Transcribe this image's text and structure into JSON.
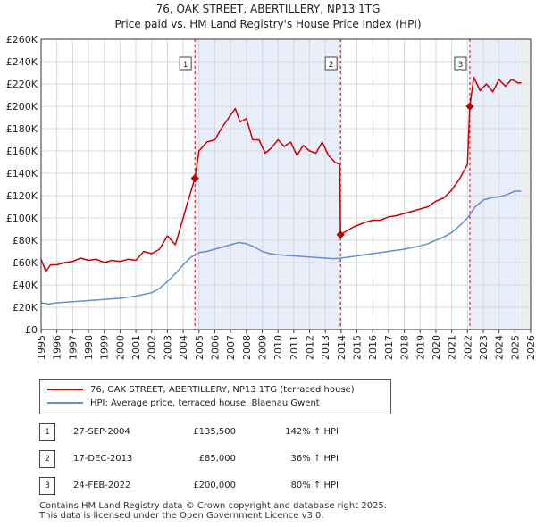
{
  "header": {
    "title_line1": "76, OAK STREET, ABERTILLERY, NP13 1TG",
    "title_line2": "Price paid vs. HM Land Registry's House Price Index (HPI)"
  },
  "chart_data": {
    "type": "line",
    "title": "76, OAK STREET, ABERTILLERY, NP13 1TG — Price paid vs. HM Land Registry's House Price Index (HPI)",
    "xlim": [
      1995,
      2026
    ],
    "ylim": [
      0,
      260000
    ],
    "x_ticks": [
      "1995",
      "1996",
      "1997",
      "1998",
      "1999",
      "2000",
      "2001",
      "2002",
      "2003",
      "2004",
      "2005",
      "2006",
      "2007",
      "2008",
      "2009",
      "2010",
      "2011",
      "2012",
      "2013",
      "2014",
      "2015",
      "2016",
      "2017",
      "2018",
      "2019",
      "2020",
      "2021",
      "2022",
      "2023",
      "2024",
      "2025",
      "2026"
    ],
    "y_ticks": [
      {
        "value": 0,
        "label": "£0"
      },
      {
        "value": 20000,
        "label": "£20K"
      },
      {
        "value": 40000,
        "label": "£40K"
      },
      {
        "value": 60000,
        "label": "£60K"
      },
      {
        "value": 80000,
        "label": "£80K"
      },
      {
        "value": 100000,
        "label": "£100K"
      },
      {
        "value": 120000,
        "label": "£120K"
      },
      {
        "value": 140000,
        "label": "£140K"
      },
      {
        "value": 160000,
        "label": "£160K"
      },
      {
        "value": 180000,
        "label": "£180K"
      },
      {
        "value": 200000,
        "label": "£200K"
      },
      {
        "value": 220000,
        "label": "£220K"
      },
      {
        "value": 240000,
        "label": "£240K"
      },
      {
        "value": 260000,
        "label": "£260K"
      }
    ],
    "shaded_ranges": [
      [
        2004.74,
        2013.96
      ],
      [
        2022.15,
        2025.4
      ]
    ],
    "future_shade_from": 2025.4,
    "series": [
      {
        "name": "76, OAK STREET, ABERTILLERY, NP13 1TG (terraced house)",
        "color": "#cc0000",
        "x": [
          1995.0,
          1995.3,
          1995.6,
          1996.0,
          1996.5,
          1997.0,
          1997.5,
          1998.0,
          1998.5,
          1999.0,
          1999.5,
          2000.0,
          2000.5,
          2001.0,
          2001.5,
          2002.0,
          2002.5,
          2003.0,
          2003.5,
          2004.0,
          2004.3,
          2004.74,
          2005.0,
          2005.5,
          2006.0,
          2006.5,
          2007.0,
          2007.3,
          2007.6,
          2008.0,
          2008.4,
          2008.8,
          2009.2,
          2009.6,
          2010.0,
          2010.4,
          2010.8,
          2011.2,
          2011.6,
          2012.0,
          2012.4,
          2012.8,
          2013.2,
          2013.6,
          2013.9,
          2013.96,
          2014.3,
          2014.8,
          2015.5,
          2016.0,
          2016.5,
          2017.0,
          2017.5,
          2018.0,
          2018.5,
          2019.0,
          2019.5,
          2020.0,
          2020.5,
          2021.0,
          2021.5,
          2022.0,
          2022.15,
          2022.4,
          2022.8,
          2023.2,
          2023.6,
          2024.0,
          2024.4,
          2024.8,
          2025.2,
          2025.4
        ],
        "values": [
          63000,
          52000,
          58000,
          58000,
          60000,
          61000,
          64000,
          62000,
          63000,
          60000,
          62000,
          61000,
          63000,
          62000,
          70000,
          68000,
          72000,
          84000,
          76000,
          100000,
          115000,
          135500,
          160000,
          168000,
          170000,
          182000,
          192000,
          198000,
          186000,
          189000,
          170000,
          170000,
          158000,
          163000,
          170000,
          164000,
          168000,
          156000,
          165000,
          160000,
          158000,
          168000,
          156000,
          150000,
          148000,
          85000,
          88000,
          92000,
          96000,
          98000,
          98000,
          101000,
          102000,
          104000,
          106000,
          108000,
          110000,
          115000,
          118000,
          125000,
          135000,
          148000,
          200000,
          226000,
          214000,
          220000,
          213000,
          224000,
          218000,
          224000,
          221000,
          221000
        ]
      },
      {
        "name": "HPI: Average price, terraced house, Blaenau Gwent",
        "color": "#6690cc",
        "x": [
          1995.0,
          1995.5,
          1996.0,
          1996.5,
          1997.0,
          1997.5,
          1998.0,
          1998.5,
          1999.0,
          1999.5,
          2000.0,
          2000.5,
          2001.0,
          2001.5,
          2002.0,
          2002.5,
          2003.0,
          2003.5,
          2004.0,
          2004.5,
          2005.0,
          2005.5,
          2006.0,
          2006.5,
          2007.0,
          2007.5,
          2008.0,
          2008.5,
          2009.0,
          2009.5,
          2010.0,
          2010.5,
          2011.0,
          2011.5,
          2012.0,
          2012.5,
          2013.0,
          2013.5,
          2014.0,
          2014.5,
          2015.0,
          2015.5,
          2016.0,
          2016.5,
          2017.0,
          2017.5,
          2018.0,
          2018.5,
          2019.0,
          2019.5,
          2020.0,
          2020.5,
          2021.0,
          2021.5,
          2022.0,
          2022.5,
          2023.0,
          2023.5,
          2024.0,
          2024.5,
          2025.0,
          2025.4
        ],
        "values": [
          24000,
          23000,
          24000,
          24500,
          25000,
          25500,
          26000,
          26500,
          27000,
          27500,
          28000,
          29000,
          30000,
          31500,
          33000,
          37000,
          43000,
          50000,
          58000,
          65000,
          69000,
          70000,
          72000,
          74000,
          76000,
          78000,
          77000,
          74000,
          70000,
          68000,
          67000,
          66500,
          66000,
          65500,
          65000,
          64500,
          64000,
          63500,
          64000,
          65000,
          66000,
          67000,
          68000,
          69000,
          70000,
          71000,
          72000,
          73500,
          75000,
          77000,
          80000,
          83000,
          87000,
          93000,
          100000,
          110000,
          116000,
          118000,
          119000,
          121000,
          124000,
          124000
        ]
      }
    ],
    "sales": [
      {
        "label": "1",
        "x": 2004.74,
        "value": 135500
      },
      {
        "label": "2",
        "x": 2013.96,
        "value": 85000
      },
      {
        "label": "3",
        "x": 2022.15,
        "value": 200000
      }
    ]
  },
  "legend": {
    "property_label": "76, OAK STREET, ABERTILLERY, NP13 1TG (terraced house)",
    "hpi_label": "HPI: Average price, terraced house, Blaenau Gwent"
  },
  "transactions": [
    {
      "num": "1",
      "date": "27-SEP-2004",
      "price": "£135,500",
      "pct": "142% ↑ HPI"
    },
    {
      "num": "2",
      "date": "17-DEC-2013",
      "price": "£85,000",
      "pct": "36% ↑ HPI"
    },
    {
      "num": "3",
      "date": "24-FEB-2022",
      "price": "£200,000",
      "pct": "80% ↑ HPI"
    }
  ],
  "footer": {
    "line1": "Contains HM Land Registry data © Crown copyright and database right 2025.",
    "line2": "This data is licensed under the Open Government Licence v3.0."
  },
  "colors": {
    "property": "#cc0000",
    "hpi": "#6690cc",
    "shade": "#e8eefa",
    "grid": "#d8d8d8"
  }
}
